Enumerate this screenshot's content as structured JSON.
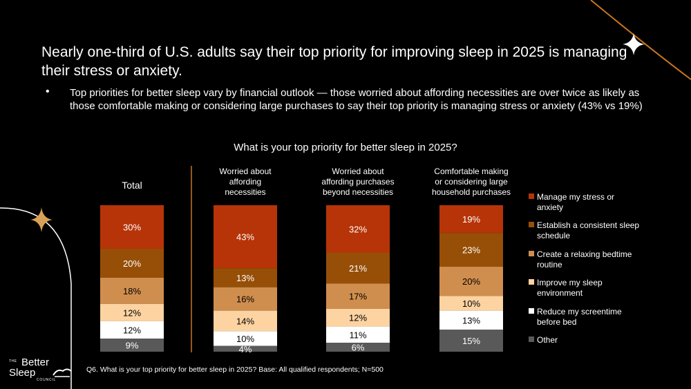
{
  "headline": "Nearly one-third of U.S. adults say their top priority for improving sleep in 2025 is managing their stress or anxiety.",
  "bullet": "Top priorities for better sleep vary by financial outlook — those worried about affording necessities are over twice as likely as those comfortable making or considering large purchases to say their top priority is managing stress or anxiety (43% vs 19%)",
  "footnote": "Q6. What is your top priority for better sleep in 2025? Base: All qualified respondents; N=500",
  "logo": {
    "the": "THE",
    "better": "Better",
    "sleep": "Sleep",
    "council": "COUNCIL"
  },
  "colors": {
    "background": "#000000",
    "accent_line": "#c8751e",
    "star": "#d8a155"
  },
  "chart_data": {
    "type": "bar",
    "stacked": true,
    "percent_stacked": true,
    "title": "What is your top priority for better sleep in 2025?",
    "categories": [
      [
        "Total"
      ],
      [
        "Worried about",
        "affording",
        "necessities"
      ],
      [
        "Worried about",
        "affording purchases",
        "beyond necessities"
      ],
      [
        "Comfortable making",
        "or considering large",
        "household purchases"
      ]
    ],
    "series": [
      {
        "name": [
          "Manage my stress or",
          "anxiety"
        ],
        "color": "#b63408",
        "values": [
          30,
          43,
          32,
          19
        ]
      },
      {
        "name": [
          "Establish a consistent sleep",
          "schedule"
        ],
        "color": "#974f08",
        "values": [
          20,
          13,
          21,
          23
        ]
      },
      {
        "name": [
          "Create a relaxing bedtime",
          "routine"
        ],
        "color": "#d08e4e",
        "values": [
          18,
          16,
          17,
          20
        ]
      },
      {
        "name": [
          "Improve my sleep",
          "environment"
        ],
        "color": "#fcd3a1",
        "values": [
          12,
          14,
          12,
          10
        ]
      },
      {
        "name": [
          "Reduce my screentime",
          "before bed"
        ],
        "color": "#ffffff",
        "values": [
          12,
          10,
          11,
          13
        ]
      },
      {
        "name": [
          "Other"
        ],
        "color": "#595959",
        "values": [
          9,
          4,
          6,
          15
        ]
      }
    ],
    "label_format": "{v}%",
    "legend_position": "right",
    "grid": false
  }
}
